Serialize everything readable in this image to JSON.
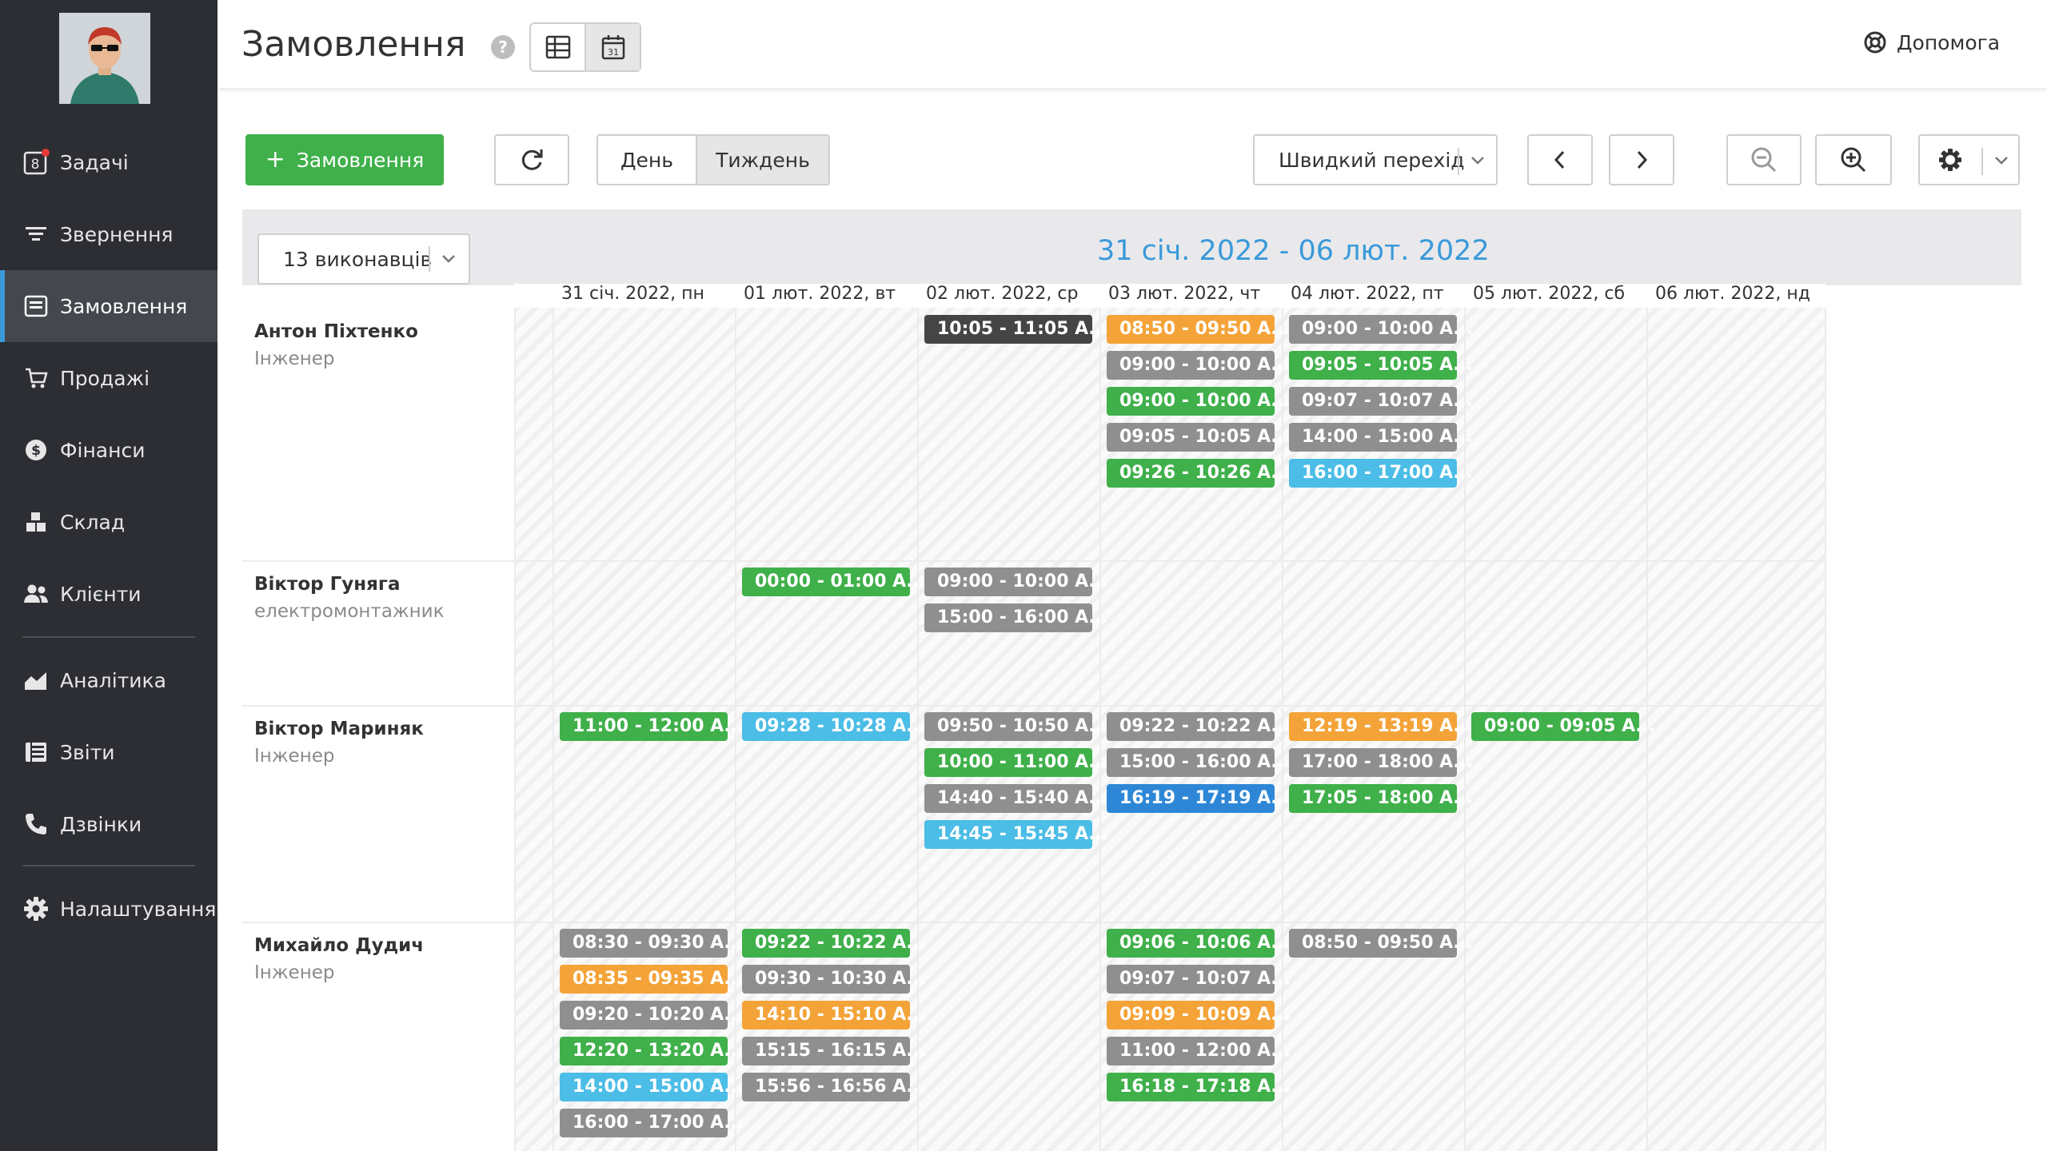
{
  "sidebar": {
    "items": [
      {
        "name": "tasks",
        "label": "Задачі",
        "badge": "8",
        "icon": "tasks-icon"
      },
      {
        "name": "requests",
        "label": "Звернення",
        "icon": "filter-icon"
      },
      {
        "name": "orders",
        "label": "Замовлення",
        "icon": "orders-icon",
        "active": true
      },
      {
        "name": "sales",
        "label": "Продажі",
        "icon": "cart-icon"
      },
      {
        "name": "finance",
        "label": "Фінанси",
        "icon": "dollar-icon"
      },
      {
        "name": "warehouse",
        "label": "Склад",
        "icon": "boxes-icon"
      },
      {
        "name": "clients",
        "label": "Клієнти",
        "icon": "users-icon"
      },
      {
        "name": "analytics",
        "label": "Аналітика",
        "icon": "chart-icon"
      },
      {
        "name": "reports",
        "label": "Звіти",
        "icon": "table-icon"
      },
      {
        "name": "calls",
        "label": "Дзвінки",
        "icon": "phone-icon"
      },
      {
        "name": "settings",
        "label": "Налаштування",
        "icon": "gear-icon"
      }
    ]
  },
  "header": {
    "title": "Замовлення",
    "help_label": "Допомога"
  },
  "toolbar": {
    "add_label": "Замовлення",
    "day_label": "День",
    "week_label": "Тиждень",
    "quick_jump_label": "Швидкий перехід"
  },
  "calendar": {
    "range": "31 січ. 2022 - 06 лют. 2022",
    "executors_label": "13 виконавців",
    "days": [
      "31 січ. 2022, пн",
      "01 лют. 2022, вт",
      "02 лют. 2022, ср",
      "03 лют. 2022, чт",
      "04 лют. 2022, пт",
      "05 лют. 2022, сб",
      "06 лют. 2022, нд"
    ],
    "people": [
      {
        "name": "Антон Піхтенко",
        "role": "Інженер"
      },
      {
        "name": "Віктор Гуняга",
        "role": "електромонтажник"
      },
      {
        "name": "Віктор Мариняк",
        "role": "Інженер"
      },
      {
        "name": "Михайло Дудич",
        "role": "Інженер"
      }
    ],
    "events": [
      {
        "row": 0,
        "day": 2,
        "slot": 0,
        "text": "10:05 - 11:05 А...",
        "color": "dark"
      },
      {
        "row": 0,
        "day": 3,
        "slot": 0,
        "text": "08:50 - 09:50 А...",
        "color": "orange"
      },
      {
        "row": 0,
        "day": 3,
        "slot": 1,
        "text": "09:00 - 10:00 А...",
        "color": "gray"
      },
      {
        "row": 0,
        "day": 3,
        "slot": 2,
        "text": "09:00 - 10:00 А...",
        "color": "green"
      },
      {
        "row": 0,
        "day": 3,
        "slot": 3,
        "text": "09:05 - 10:05 А...",
        "color": "gray"
      },
      {
        "row": 0,
        "day": 3,
        "slot": 4,
        "text": "09:26 - 10:26 А...",
        "color": "green"
      },
      {
        "row": 0,
        "day": 4,
        "slot": 0,
        "text": "09:00 - 10:00 А...",
        "color": "gray"
      },
      {
        "row": 0,
        "day": 4,
        "slot": 1,
        "text": "09:05 - 10:05 А...",
        "color": "green"
      },
      {
        "row": 0,
        "day": 4,
        "slot": 2,
        "text": "09:07 - 10:07 А...",
        "color": "gray"
      },
      {
        "row": 0,
        "day": 4,
        "slot": 3,
        "text": "14:00 - 15:00 А...",
        "color": "gray"
      },
      {
        "row": 0,
        "day": 4,
        "slot": 4,
        "text": "16:00 - 17:00 А...",
        "color": "cyan"
      },
      {
        "row": 1,
        "day": 1,
        "slot": 0,
        "text": "00:00 - 01:00 А...",
        "color": "green"
      },
      {
        "row": 1,
        "day": 2,
        "slot": 0,
        "text": "09:00 - 10:00 А...",
        "color": "gray"
      },
      {
        "row": 1,
        "day": 2,
        "slot": 1,
        "text": "15:00 - 16:00 А...",
        "color": "gray"
      },
      {
        "row": 2,
        "day": 0,
        "slot": 0,
        "text": "11:00 - 12:00 А...",
        "color": "green"
      },
      {
        "row": 2,
        "day": 1,
        "slot": 0,
        "text": "09:28 - 10:28 А...",
        "color": "cyan"
      },
      {
        "row": 2,
        "day": 2,
        "slot": 0,
        "text": "09:50 - 10:50 А...",
        "color": "gray"
      },
      {
        "row": 2,
        "day": 2,
        "slot": 1,
        "text": "10:00 - 11:00 А...",
        "color": "green"
      },
      {
        "row": 2,
        "day": 2,
        "slot": 2,
        "text": "14:40 - 15:40 А...",
        "color": "gray"
      },
      {
        "row": 2,
        "day": 2,
        "slot": 3,
        "text": "14:45 - 15:45 А...",
        "color": "cyan"
      },
      {
        "row": 2,
        "day": 3,
        "slot": 0,
        "text": "09:22 - 10:22 А...",
        "color": "gray"
      },
      {
        "row": 2,
        "day": 3,
        "slot": 1,
        "text": "15:00 - 16:00 А...",
        "color": "gray"
      },
      {
        "row": 2,
        "day": 3,
        "slot": 2,
        "text": "16:19 - 17:19 А...",
        "color": "blue"
      },
      {
        "row": 2,
        "day": 4,
        "slot": 0,
        "text": "12:19 - 13:19 А...",
        "color": "orange"
      },
      {
        "row": 2,
        "day": 4,
        "slot": 1,
        "text": "17:00 - 18:00 А...",
        "color": "gray"
      },
      {
        "row": 2,
        "day": 4,
        "slot": 2,
        "text": "17:05 - 18:00 А...",
        "color": "green"
      },
      {
        "row": 2,
        "day": 5,
        "slot": 0,
        "text": "09:00 - 09:05 А...",
        "color": "green"
      },
      {
        "row": 3,
        "day": 0,
        "slot": 0,
        "text": "08:30 - 09:30 А...",
        "color": "gray"
      },
      {
        "row": 3,
        "day": 0,
        "slot": 1,
        "text": "08:35 - 09:35 А...",
        "color": "orange"
      },
      {
        "row": 3,
        "day": 0,
        "slot": 2,
        "text": "09:20 - 10:20 А...",
        "color": "gray"
      },
      {
        "row": 3,
        "day": 0,
        "slot": 3,
        "text": "12:20 - 13:20 А...",
        "color": "green"
      },
      {
        "row": 3,
        "day": 0,
        "slot": 4,
        "text": "14:00 - 15:00 А...",
        "color": "cyan"
      },
      {
        "row": 3,
        "day": 0,
        "slot": 5,
        "text": "16:00 - 17:00 А...",
        "color": "gray"
      },
      {
        "row": 3,
        "day": 1,
        "slot": 0,
        "text": "09:22 - 10:22 А...",
        "color": "green"
      },
      {
        "row": 3,
        "day": 1,
        "slot": 1,
        "text": "09:30 - 10:30 А...",
        "color": "gray"
      },
      {
        "row": 3,
        "day": 1,
        "slot": 2,
        "text": "14:10 - 15:10 А...",
        "color": "orange"
      },
      {
        "row": 3,
        "day": 1,
        "slot": 3,
        "text": "15:15 - 16:15 А...",
        "color": "gray"
      },
      {
        "row": 3,
        "day": 1,
        "slot": 4,
        "text": "15:56 - 16:56 А...",
        "color": "gray"
      },
      {
        "row": 3,
        "day": 3,
        "slot": 0,
        "text": "09:06 - 10:06 А...",
        "color": "green"
      },
      {
        "row": 3,
        "day": 3,
        "slot": 1,
        "text": "09:07 - 10:07 А...",
        "color": "gray"
      },
      {
        "row": 3,
        "day": 3,
        "slot": 2,
        "text": "09:09 - 10:09 А...",
        "color": "orange"
      },
      {
        "row": 3,
        "day": 3,
        "slot": 3,
        "text": "11:00 - 12:00 А...",
        "color": "gray"
      },
      {
        "row": 3,
        "day": 3,
        "slot": 4,
        "text": "16:18 - 17:18 А...",
        "color": "green"
      },
      {
        "row": 3,
        "day": 4,
        "slot": 0,
        "text": "08:50 - 09:50 А...",
        "color": "gray"
      }
    ]
  },
  "colors": {
    "accent": "#3a9ad9",
    "primary_button": "#3fb04a",
    "sidebar_bg": "#2c2e33",
    "notification_dot": "#e53935"
  }
}
